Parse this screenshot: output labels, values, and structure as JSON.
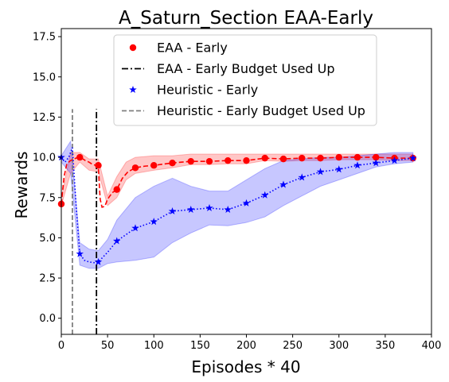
{
  "chart_data": {
    "type": "line",
    "title": "A_Saturn_Section EAA-Early",
    "xlabel": "Episodes * 40",
    "ylabel": "Rewards",
    "xlim": [
      0,
      400
    ],
    "ylim": [
      -1,
      18
    ],
    "xticks": [
      0,
      50,
      100,
      150,
      200,
      250,
      300,
      350,
      400
    ],
    "yticks": [
      0.0,
      2.5,
      5.0,
      7.5,
      10.0,
      12.5,
      15.0,
      17.5
    ],
    "xtick_labels": [
      "0",
      "50",
      "100",
      "150",
      "200",
      "250",
      "300",
      "350",
      "400"
    ],
    "ytick_labels": [
      "0.0",
      "2.5",
      "5.0",
      "7.5",
      "10.0",
      "12.5",
      "15.0",
      "17.5"
    ],
    "grid": false,
    "legend_position": "top-center",
    "series": [
      {
        "name": "EAA - Early",
        "color": "#ff0000",
        "marker": "circle",
        "line_style": "dashed",
        "x": [
          0,
          20,
          40,
          60,
          80,
          100,
          120,
          140,
          160,
          180,
          200,
          220,
          240,
          260,
          280,
          300,
          320,
          340,
          360,
          380
        ],
        "y": [
          7.1,
          10.0,
          9.5,
          8.0,
          9.35,
          9.5,
          9.65,
          9.75,
          9.75,
          9.8,
          9.8,
          9.95,
          9.9,
          9.95,
          9.95,
          10.0,
          10.0,
          10.0,
          9.95,
          9.95
        ],
        "curve_x": [
          0,
          3,
          6,
          10,
          14,
          18,
          22,
          26,
          30,
          34,
          38,
          40,
          42,
          44,
          47,
          50,
          55,
          60,
          66,
          72,
          80,
          90,
          100,
          120,
          140,
          160,
          180,
          200,
          220,
          240,
          260,
          280,
          300,
          320,
          340,
          360,
          380
        ],
        "curve_y": [
          7.1,
          8.8,
          9.6,
          9.8,
          9.9,
          10.0,
          9.95,
          9.8,
          9.7,
          9.55,
          9.5,
          9.4,
          7.4,
          6.9,
          6.95,
          7.4,
          7.8,
          8.0,
          8.7,
          9.1,
          9.35,
          9.45,
          9.5,
          9.65,
          9.75,
          9.75,
          9.8,
          9.8,
          9.95,
          9.9,
          9.95,
          9.95,
          10.0,
          10.0,
          10.0,
          9.95,
          9.95
        ],
        "band_x": [
          0,
          10,
          20,
          30,
          40,
          50,
          60,
          70,
          80,
          100,
          120,
          140,
          160,
          180,
          200,
          220,
          240,
          260,
          280,
          300,
          320,
          340,
          360,
          380
        ],
        "band_low": [
          7.0,
          9.0,
          9.7,
          9.2,
          9.1,
          7.0,
          7.5,
          8.6,
          9.0,
          9.2,
          9.35,
          9.55,
          9.55,
          9.6,
          9.6,
          9.8,
          9.75,
          9.8,
          9.8,
          9.85,
          9.85,
          9.85,
          9.8,
          9.8
        ],
        "band_high": [
          7.5,
          10.3,
          10.3,
          9.9,
          9.9,
          7.6,
          8.8,
          9.7,
          10.0,
          10.1,
          10.1,
          10.2,
          10.2,
          10.2,
          10.2,
          10.2,
          10.2,
          10.2,
          10.2,
          10.2,
          10.2,
          10.2,
          10.2,
          10.2
        ]
      },
      {
        "name": "EAA - Early Budget Used Up",
        "color": "#000000",
        "line_style": "dashdot",
        "vline_x": 38,
        "y_range": [
          -1,
          13
        ]
      },
      {
        "name": "Heuristic - Early",
        "color": "#0000ff",
        "marker": "star",
        "line_style": "dotted",
        "x": [
          0,
          20,
          40,
          60,
          80,
          100,
          120,
          140,
          160,
          180,
          200,
          220,
          240,
          260,
          280,
          300,
          320,
          340,
          360,
          380
        ],
        "y": [
          10.0,
          4.0,
          3.5,
          4.8,
          5.6,
          6.0,
          6.65,
          6.75,
          6.85,
          6.75,
          7.15,
          7.65,
          8.3,
          8.75,
          9.1,
          9.25,
          9.5,
          9.65,
          9.8,
          9.95
        ],
        "curve_x": [
          0,
          4,
          8,
          12,
          16,
          20,
          25,
          30,
          36,
          40,
          50,
          60,
          70,
          80,
          90,
          100,
          120,
          140,
          160,
          180,
          200,
          220,
          240,
          260,
          280,
          300,
          320,
          340,
          360,
          380
        ],
        "curve_y": [
          10.0,
          9.7,
          10.0,
          10.6,
          7.0,
          4.0,
          3.6,
          3.5,
          3.45,
          3.5,
          4.1,
          4.8,
          5.2,
          5.6,
          5.8,
          6.0,
          6.65,
          6.75,
          6.85,
          6.75,
          7.15,
          7.65,
          8.3,
          8.75,
          9.1,
          9.25,
          9.5,
          9.65,
          9.8,
          9.95
        ],
        "band_x": [
          0,
          10,
          20,
          30,
          40,
          50,
          60,
          80,
          100,
          120,
          140,
          160,
          180,
          200,
          220,
          240,
          260,
          280,
          300,
          320,
          340,
          360,
          380
        ],
        "band_low": [
          9.7,
          9.0,
          3.3,
          3.1,
          3.1,
          3.4,
          3.5,
          3.6,
          3.8,
          4.7,
          5.3,
          5.8,
          5.75,
          5.95,
          6.3,
          7.0,
          7.6,
          8.2,
          8.6,
          9.0,
          9.4,
          9.6,
          9.7
        ],
        "band_high": [
          10.1,
          11.0,
          4.7,
          4.3,
          4.2,
          4.9,
          6.1,
          7.5,
          8.2,
          8.7,
          8.2,
          7.9,
          7.9,
          8.6,
          9.3,
          9.8,
          9.9,
          10.0,
          10.0,
          10.1,
          10.2,
          10.3,
          10.3
        ]
      },
      {
        "name": "Heuristic - Early Budget Used Up",
        "color": "#808080",
        "line_style": "dashed",
        "vline_x": 12,
        "y_range": [
          -1,
          13
        ]
      }
    ]
  }
}
